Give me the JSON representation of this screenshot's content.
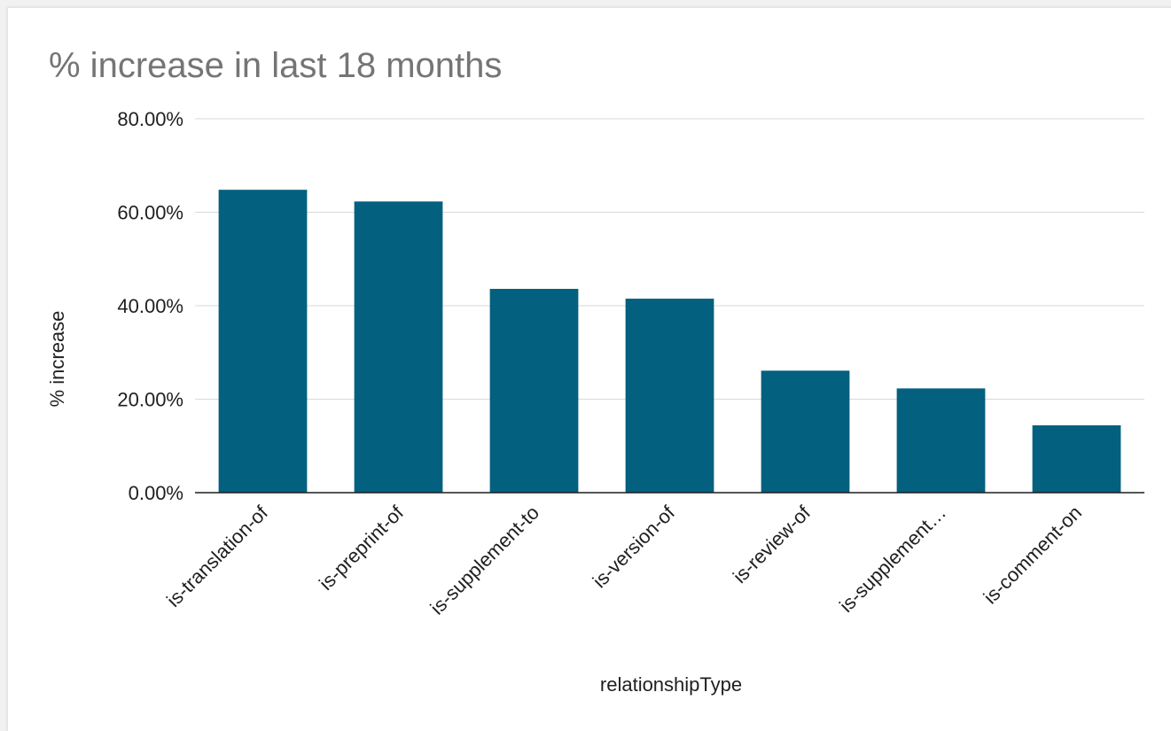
{
  "chart_data": {
    "type": "bar",
    "title": "% increase in last 18 months",
    "xlabel": "relationshipType",
    "ylabel": "% increase",
    "categories": [
      "is-translation-of",
      "is-preprint-of",
      "is-supplement-to",
      "is-version-of",
      "is-review-of",
      "is-supplement…",
      "is-comment-on"
    ],
    "values": [
      64.8,
      62.3,
      43.6,
      41.5,
      26.1,
      22.3,
      14.4
    ],
    "ylim": [
      0,
      80
    ],
    "yticks": [
      0,
      20,
      40,
      60,
      80
    ],
    "ytick_labels": [
      "0.00%",
      "20.00%",
      "40.00%",
      "60.00%",
      "80.00%"
    ],
    "grid": true,
    "legend": "none",
    "colors": {
      "bar": "#04607f",
      "grid": "#d9d9d9",
      "axis": "#1f1f1f",
      "title": "#757575",
      "text": "#1f1f1f",
      "background": "#ffffff"
    }
  }
}
